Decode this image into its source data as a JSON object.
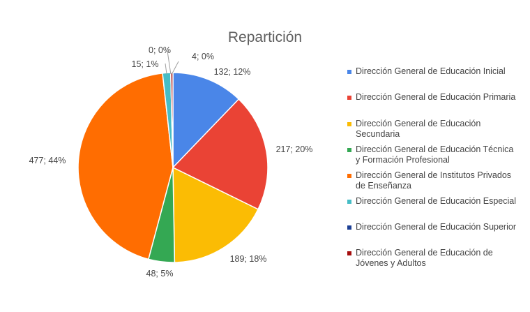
{
  "chart_data": {
    "type": "pie",
    "title": "Repartición",
    "legend_position": "right",
    "slices": [
      {
        "name": "Dirección General de Educación Inicial",
        "value": 132,
        "label": "132; 12%",
        "color": "#4a86e8"
      },
      {
        "name": "Dirección General de Educación Primaria",
        "value": 217,
        "label": "217; 20%",
        "color": "#ea4335"
      },
      {
        "name": "Dirección General de Educación Secundaria",
        "value": 189,
        "label": "189; 18%",
        "color": "#fbbc04"
      },
      {
        "name": "Dirección General de Educación Técnica y Formación Profesional",
        "value": 48,
        "label": "48; 5%",
        "color": "#34a853"
      },
      {
        "name": "Dirección General de Institutos Privados de Enseñanza",
        "value": 477,
        "label": "477; 44%",
        "color": "#ff6d01"
      },
      {
        "name": "Dirección General de Educación Especial",
        "value": 15,
        "label": "15; 1%",
        "color": "#46bdc6"
      },
      {
        "name": "Dirección General de Educación Superior",
        "value": 0,
        "label": "0; 0%",
        "color": "#1c3f94"
      },
      {
        "name": "Dirección General de Educación de Jóvenes y Adultos",
        "value": 4,
        "label": "4; 0%",
        "color": "#a50e0e"
      }
    ]
  }
}
